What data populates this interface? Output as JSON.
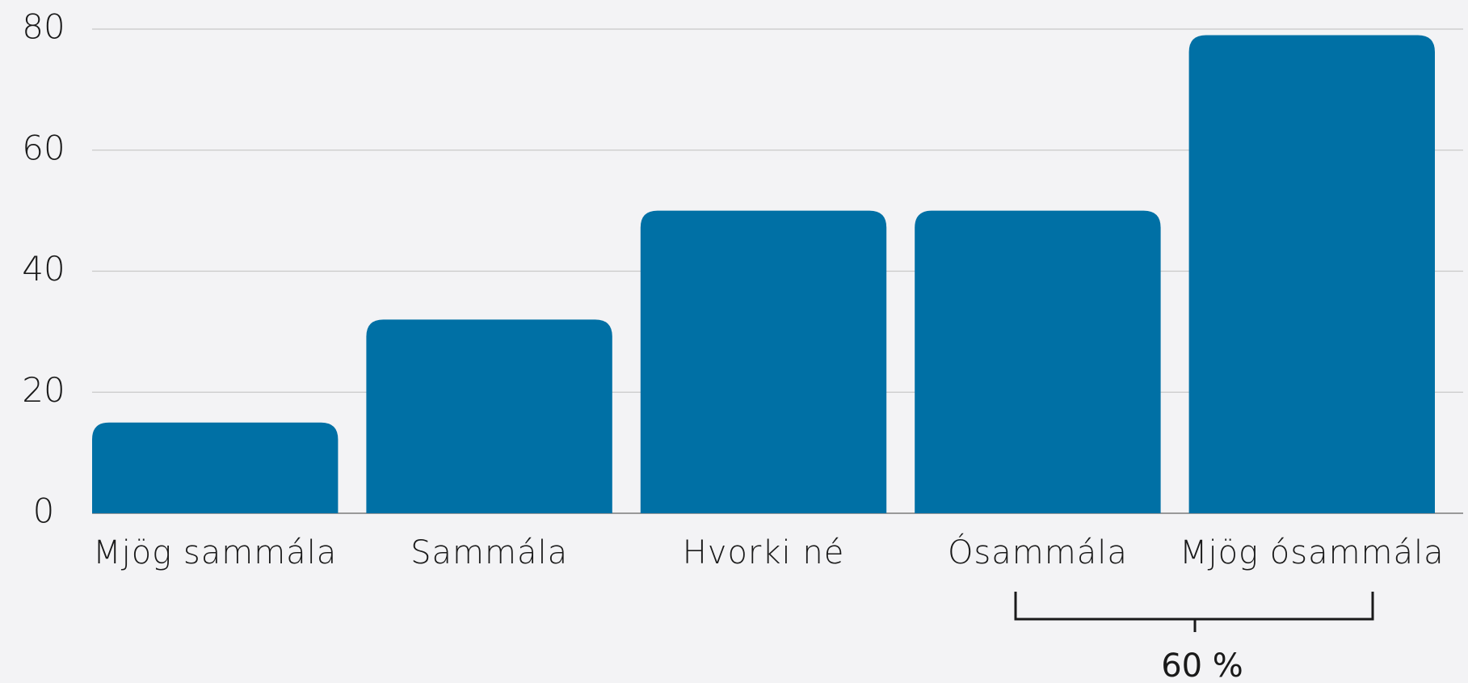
{
  "chart_data": {
    "type": "bar",
    "categories": [
      "Mjög sammála",
      "Sammála",
      "Hvorki né",
      "Ósammála",
      "Mjög ósammála"
    ],
    "values": [
      15,
      32,
      50,
      50,
      79
    ],
    "color": "#0070a5",
    "ylim": [
      0,
      80
    ],
    "yticks": [
      0,
      20,
      40,
      60,
      80
    ],
    "grid": true,
    "annotation": "60 %"
  }
}
